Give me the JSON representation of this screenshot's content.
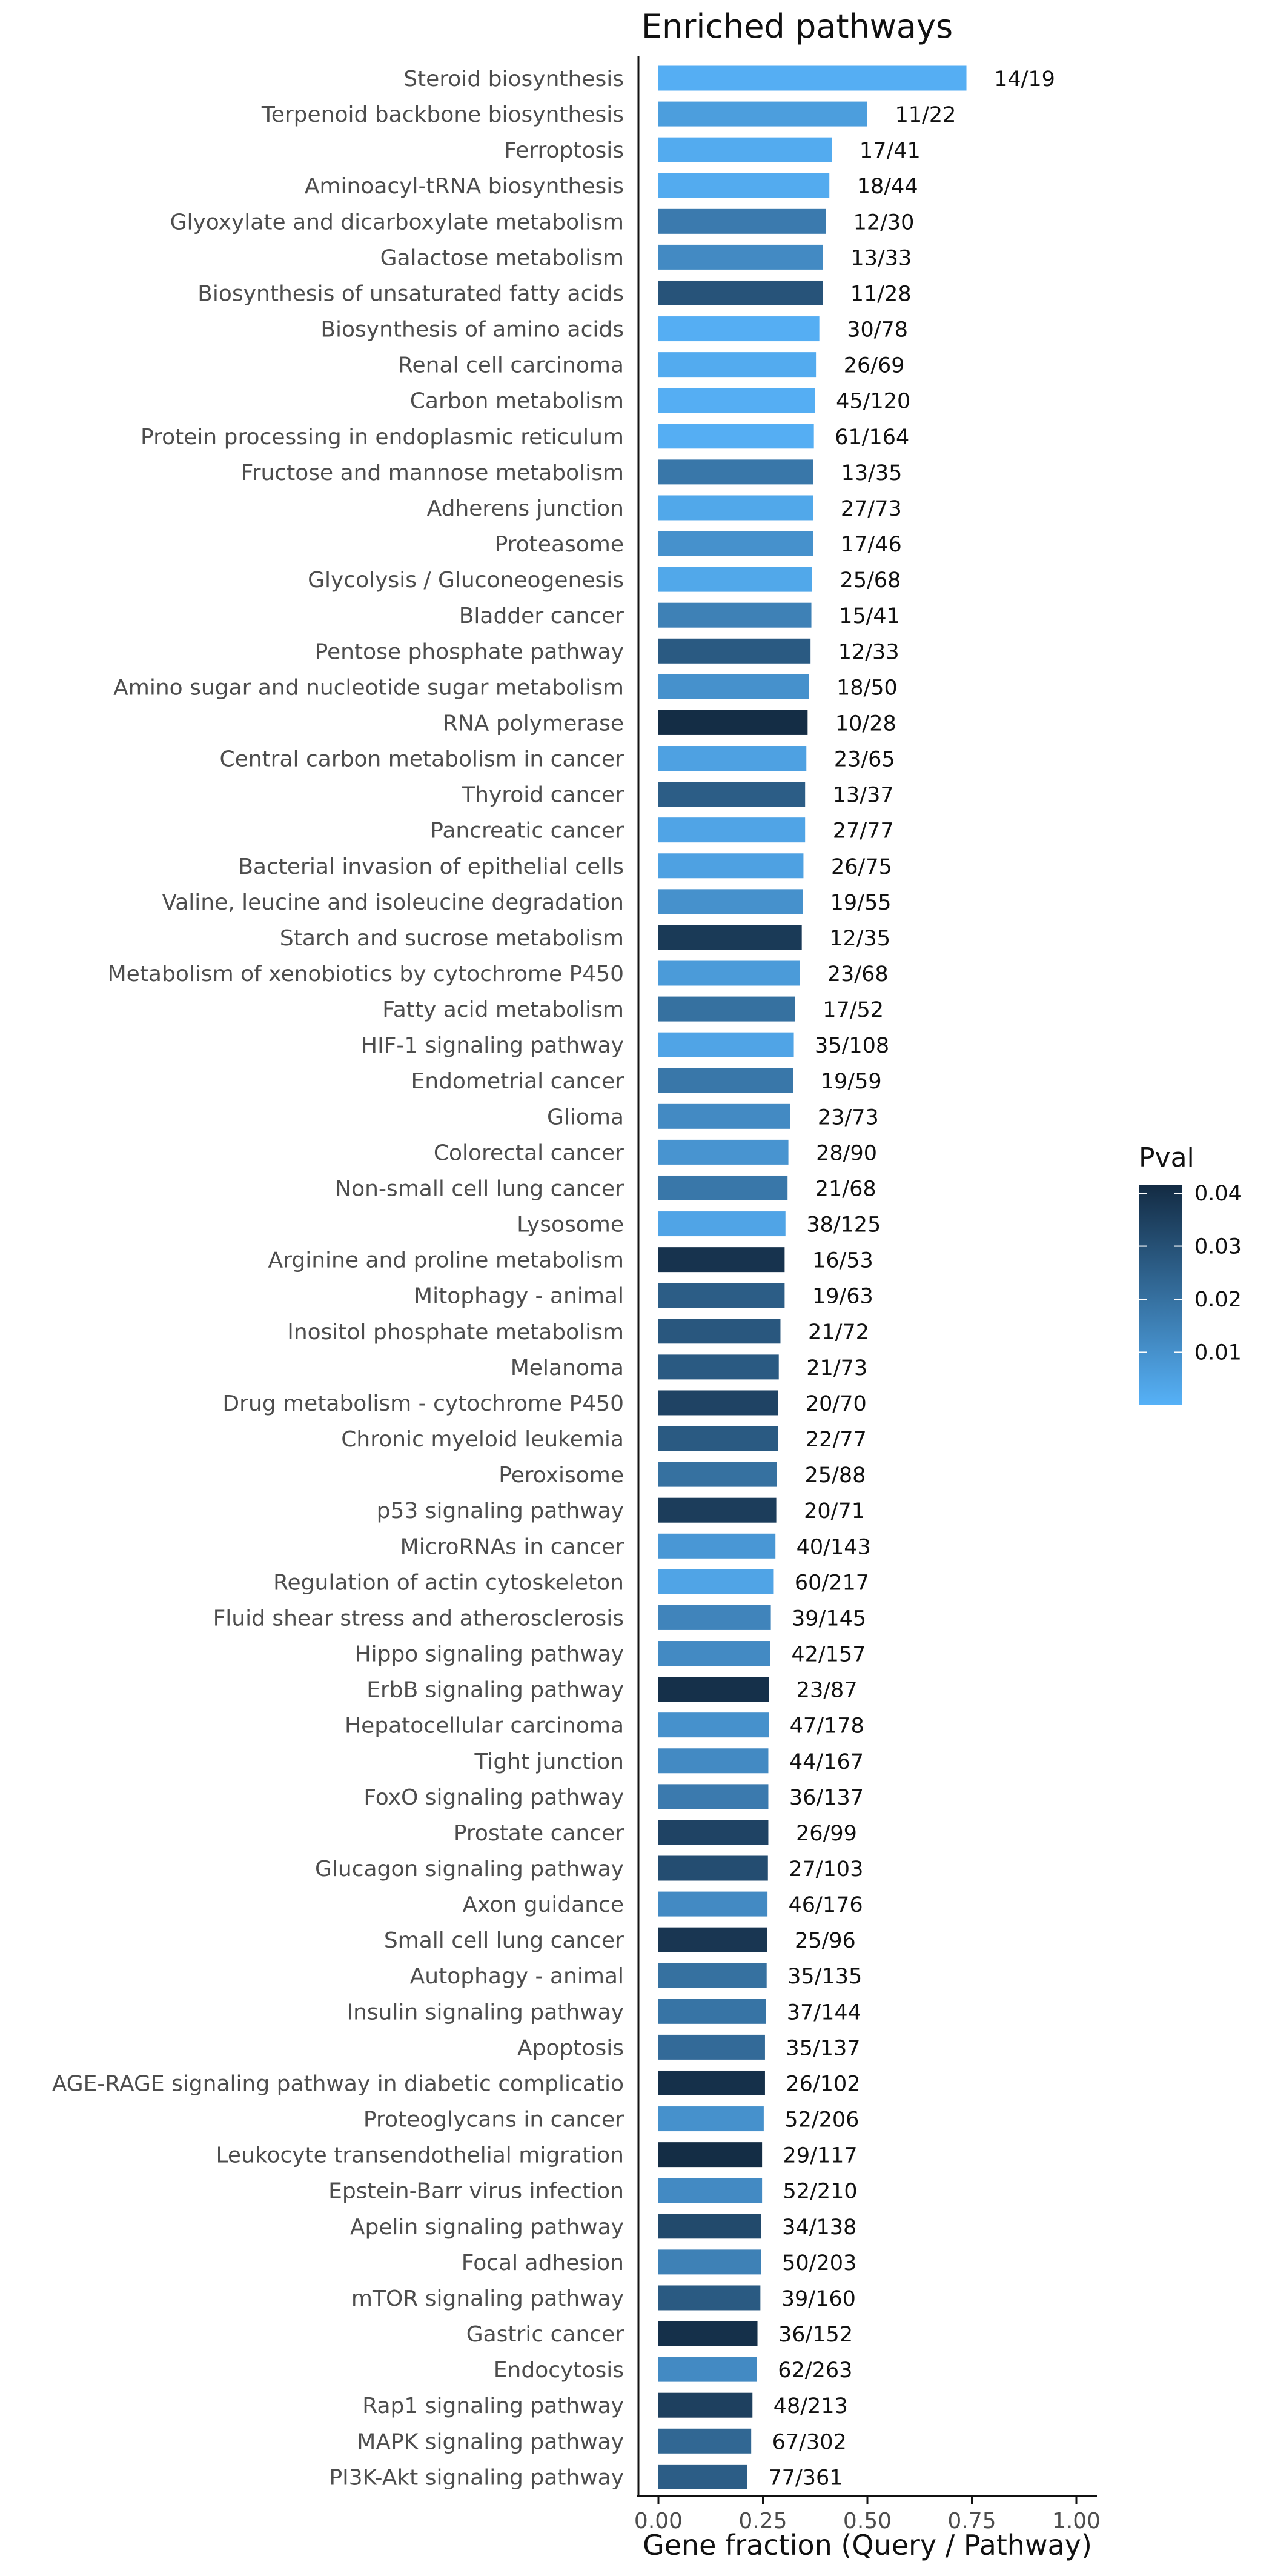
{
  "chart_data": {
    "type": "bar",
    "orientation": "horizontal",
    "title": "Enriched pathways",
    "xlabel": "Gene fraction (Query / Pathway)",
    "ylabel": "",
    "xlim": [
      0,
      1
    ],
    "xticks": [
      0,
      0.25,
      0.5,
      0.75,
      1
    ],
    "xtick_labels": [
      "0.00",
      "0.25",
      "0.50",
      "0.75",
      "1.00"
    ],
    "grid": false,
    "legend": {
      "title": "Pval",
      "position": "right",
      "type": "colorbar",
      "range": [
        0.0001,
        0.0415
      ],
      "ticks": [
        0.01,
        0.02,
        0.03,
        0.04
      ],
      "tick_labels": [
        "0.01",
        "0.02",
        "0.03",
        "0.04"
      ],
      "color_low": "#56B1F7",
      "color_high": "#132B43"
    },
    "bars": [
      {
        "category": "Steroid biosynthesis",
        "value": 0.737,
        "label": "14/19",
        "pval": 0.001
      },
      {
        "category": "Terpenoid backbone biosynthesis",
        "value": 0.5,
        "label": "11/22",
        "pval": 0.006
      },
      {
        "category": "Ferroptosis",
        "value": 0.415,
        "label": "17/41",
        "pval": 0.002
      },
      {
        "category": "Aminoacyl-tRNA biosynthesis",
        "value": 0.409,
        "label": "18/44",
        "pval": 0.002
      },
      {
        "category": "Glyoxylate and dicarboxylate metabolism",
        "value": 0.4,
        "label": "12/30",
        "pval": 0.017
      },
      {
        "category": "Galactose metabolism",
        "value": 0.394,
        "label": "13/33",
        "pval": 0.012
      },
      {
        "category": "Biosynthesis of unsaturated fatty acids",
        "value": 0.393,
        "label": "11/28",
        "pval": 0.029
      },
      {
        "category": "Biosynthesis of amino acids",
        "value": 0.385,
        "label": "30/78",
        "pval": 0.001
      },
      {
        "category": "Renal cell carcinoma",
        "value": 0.377,
        "label": "26/69",
        "pval": 0.002
      },
      {
        "category": "Carbon metabolism",
        "value": 0.375,
        "label": "45/120",
        "pval": 0.001
      },
      {
        "category": "Protein processing in endoplasmic reticulum",
        "value": 0.372,
        "label": "61/164",
        "pval": 0.001
      },
      {
        "category": "Fructose and mannose metabolism",
        "value": 0.371,
        "label": "13/35",
        "pval": 0.018
      },
      {
        "category": "Adherens junction",
        "value": 0.37,
        "label": "27/73",
        "pval": 0.003
      },
      {
        "category": "Proteasome",
        "value": 0.37,
        "label": "17/46",
        "pval": 0.01
      },
      {
        "category": "Glycolysis / Gluconeogenesis",
        "value": 0.368,
        "label": "25/68",
        "pval": 0.003
      },
      {
        "category": "Bladder cancer",
        "value": 0.366,
        "label": "15/41",
        "pval": 0.015
      },
      {
        "category": "Pentose phosphate pathway",
        "value": 0.364,
        "label": "12/33",
        "pval": 0.027
      },
      {
        "category": "Amino sugar and nucleotide sugar metabolism",
        "value": 0.36,
        "label": "18/50",
        "pval": 0.01
      },
      {
        "category": "RNA polymerase",
        "value": 0.357,
        "label": "10/28",
        "pval": 0.041
      },
      {
        "category": "Central carbon metabolism in cancer",
        "value": 0.354,
        "label": "23/65",
        "pval": 0.005
      },
      {
        "category": "Thyroid cancer",
        "value": 0.351,
        "label": "13/37",
        "pval": 0.026
      },
      {
        "category": "Pancreatic cancer",
        "value": 0.351,
        "label": "27/77",
        "pval": 0.004
      },
      {
        "category": "Bacterial invasion of epithelial cells",
        "value": 0.347,
        "label": "26/75",
        "pval": 0.005
      },
      {
        "category": "Valine, leucine and isoleucine degradation",
        "value": 0.345,
        "label": "19/55",
        "pval": 0.01
      },
      {
        "category": "Starch and sucrose metabolism",
        "value": 0.343,
        "label": "12/35",
        "pval": 0.037
      },
      {
        "category": "Metabolism of xenobiotics by cytochrome P450",
        "value": 0.338,
        "label": "23/68",
        "pval": 0.007
      },
      {
        "category": "Fatty acid metabolism",
        "value": 0.327,
        "label": "17/52",
        "pval": 0.02
      },
      {
        "category": "HIF-1 signaling pathway",
        "value": 0.324,
        "label": "35/108",
        "pval": 0.004
      },
      {
        "category": "Endometrial cancer",
        "value": 0.322,
        "label": "19/59",
        "pval": 0.018
      },
      {
        "category": "Glioma",
        "value": 0.315,
        "label": "23/73",
        "pval": 0.012
      },
      {
        "category": "Colorectal cancer",
        "value": 0.311,
        "label": "28/90",
        "pval": 0.009
      },
      {
        "category": "Non-small cell lung cancer",
        "value": 0.309,
        "label": "21/68",
        "pval": 0.018
      },
      {
        "category": "Lysosome",
        "value": 0.304,
        "label": "38/125",
        "pval": 0.004
      },
      {
        "category": "Arginine and proline metabolism",
        "value": 0.302,
        "label": "16/53",
        "pval": 0.039
      },
      {
        "category": "Mitophagy - animal",
        "value": 0.302,
        "label": "19/63",
        "pval": 0.026
      },
      {
        "category": "Inositol phosphate metabolism",
        "value": 0.292,
        "label": "21/72",
        "pval": 0.028
      },
      {
        "category": "Melanoma",
        "value": 0.288,
        "label": "21/73",
        "pval": 0.027
      },
      {
        "category": "Drug metabolism - cytochrome P450",
        "value": 0.286,
        "label": "20/70",
        "pval": 0.034
      },
      {
        "category": "Chronic myeloid leukemia",
        "value": 0.286,
        "label": "22/77",
        "pval": 0.027
      },
      {
        "category": "Peroxisome",
        "value": 0.284,
        "label": "25/88",
        "pval": 0.02
      },
      {
        "category": "p53 signaling pathway",
        "value": 0.282,
        "label": "20/71",
        "pval": 0.036
      },
      {
        "category": "MicroRNAs in cancer",
        "value": 0.28,
        "label": "40/143",
        "pval": 0.008
      },
      {
        "category": "Regulation of actin cytoskeleton",
        "value": 0.276,
        "label": "60/217",
        "pval": 0.004
      },
      {
        "category": "Fluid shear stress and atherosclerosis",
        "value": 0.269,
        "label": "39/145",
        "pval": 0.014
      },
      {
        "category": "Hippo signaling pathway",
        "value": 0.268,
        "label": "42/157",
        "pval": 0.012
      },
      {
        "category": "ErbB signaling pathway",
        "value": 0.264,
        "label": "23/87",
        "pval": 0.04
      },
      {
        "category": "Hepatocellular carcinoma",
        "value": 0.264,
        "label": "47/178",
        "pval": 0.01
      },
      {
        "category": "Tight junction",
        "value": 0.263,
        "label": "44/167",
        "pval": 0.012
      },
      {
        "category": "FoxO signaling pathway",
        "value": 0.263,
        "label": "36/137",
        "pval": 0.017
      },
      {
        "category": "Prostate cancer",
        "value": 0.263,
        "label": "26/99",
        "pval": 0.034
      },
      {
        "category": "Glucagon signaling pathway",
        "value": 0.262,
        "label": "27/103",
        "pval": 0.031
      },
      {
        "category": "Axon guidance",
        "value": 0.261,
        "label": "46/176",
        "pval": 0.012
      },
      {
        "category": "Small cell lung cancer",
        "value": 0.26,
        "label": "25/96",
        "pval": 0.038
      },
      {
        "category": "Autophagy - animal",
        "value": 0.259,
        "label": "35/135",
        "pval": 0.02
      },
      {
        "category": "Insulin signaling pathway",
        "value": 0.257,
        "label": "37/144",
        "pval": 0.019
      },
      {
        "category": "Apoptosis",
        "value": 0.255,
        "label": "35/137",
        "pval": 0.022
      },
      {
        "category": "AGE-RAGE signaling pathway in diabetic complicatio",
        "value": 0.255,
        "label": "26/102",
        "pval": 0.04
      },
      {
        "category": "Proteoglycans in cancer",
        "value": 0.252,
        "label": "52/206",
        "pval": 0.01
      },
      {
        "category": "Leukocyte transendothelial migration",
        "value": 0.248,
        "label": "29/117",
        "pval": 0.041
      },
      {
        "category": "Epstein-Barr virus infection",
        "value": 0.248,
        "label": "52/210",
        "pval": 0.012
      },
      {
        "category": "Apelin signaling pathway",
        "value": 0.246,
        "label": "34/138",
        "pval": 0.032
      },
      {
        "category": "Focal adhesion",
        "value": 0.246,
        "label": "50/203",
        "pval": 0.015
      },
      {
        "category": "mTOR signaling pathway",
        "value": 0.244,
        "label": "39/160",
        "pval": 0.027
      },
      {
        "category": "Gastric cancer",
        "value": 0.237,
        "label": "36/152",
        "pval": 0.04
      },
      {
        "category": "Endocytosis",
        "value": 0.236,
        "label": "62/263",
        "pval": 0.012
      },
      {
        "category": "Rap1 signaling pathway",
        "value": 0.225,
        "label": "48/213",
        "pval": 0.035
      },
      {
        "category": "MAPK signaling pathway",
        "value": 0.222,
        "label": "67/302",
        "pval": 0.023
      },
      {
        "category": "PI3K-Akt signaling pathway",
        "value": 0.213,
        "label": "77/361",
        "pval": 0.026
      }
    ]
  }
}
